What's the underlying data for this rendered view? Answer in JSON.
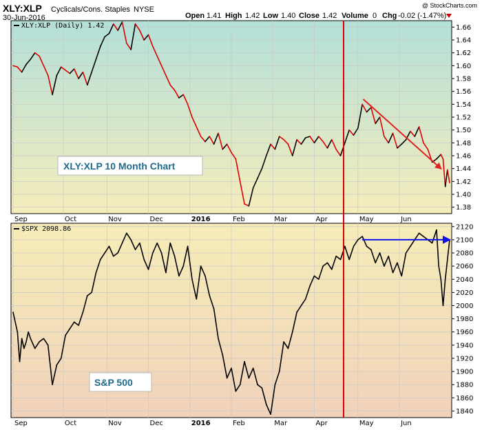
{
  "header": {
    "symbol": "XLY:XLP",
    "name": "Cyclicals/Cons. Staples",
    "exchange": "NYSE",
    "date": "30-Jun-2016",
    "open_label": "Open",
    "open": "1.41",
    "high_label": "High",
    "high": "1.42",
    "low_label": "Low",
    "low": "1.40",
    "close_label": "Close",
    "close": "1.42",
    "volume_label": "Volume",
    "volume": "0",
    "chg_label": "Chg",
    "chg": "-0.02 (-1.47%)",
    "watermark": "@ StockCharts.com"
  },
  "colors": {
    "ratio_up": "#000000",
    "ratio_down": "#dd0000",
    "trend_red": "#e02020",
    "trend_blue": "#1010ee",
    "vline": "#dd0000"
  },
  "chart_data": [
    {
      "type": "line",
      "legend": "XLY:XLP (Daily) 1.42",
      "annotation": "XLY:XLP 10 Month Chart",
      "ylim": [
        1.37,
        1.67
      ],
      "yticks": [
        "1.66",
        "1.64",
        "1.62",
        "1.60",
        "1.58",
        "1.56",
        "1.54",
        "1.52",
        "1.50",
        "1.48",
        "1.46",
        "1.44",
        "1.42",
        "1.40",
        "1.38"
      ],
      "months": [
        "Sep",
        "Oct",
        "Nov",
        "Dec",
        "2016",
        "Feb",
        "Mar",
        "Apr",
        "May",
        "Jun"
      ],
      "grid": true,
      "trendline": {
        "from": [
          0.802,
          1.548
        ],
        "to": [
          0.98,
          1.44
        ]
      },
      "series": [
        {
          "x": 0.0,
          "y": 1.6
        },
        {
          "x": 0.01,
          "y": 1.598
        },
        {
          "x": 0.02,
          "y": 1.59
        },
        {
          "x": 0.03,
          "y": 1.602
        },
        {
          "x": 0.04,
          "y": 1.61
        },
        {
          "x": 0.05,
          "y": 1.62
        },
        {
          "x": 0.06,
          "y": 1.615
        },
        {
          "x": 0.07,
          "y": 1.6
        },
        {
          "x": 0.08,
          "y": 1.585
        },
        {
          "x": 0.09,
          "y": 1.555
        },
        {
          "x": 0.1,
          "y": 1.585
        },
        {
          "x": 0.11,
          "y": 1.598
        },
        {
          "x": 0.12,
          "y": 1.593
        },
        {
          "x": 0.13,
          "y": 1.588
        },
        {
          "x": 0.14,
          "y": 1.595
        },
        {
          "x": 0.15,
          "y": 1.58
        },
        {
          "x": 0.16,
          "y": 1.59
        },
        {
          "x": 0.17,
          "y": 1.57
        },
        {
          "x": 0.18,
          "y": 1.59
        },
        {
          "x": 0.19,
          "y": 1.61
        },
        {
          "x": 0.2,
          "y": 1.63
        },
        {
          "x": 0.21,
          "y": 1.645
        },
        {
          "x": 0.22,
          "y": 1.65
        },
        {
          "x": 0.23,
          "y": 1.665
        },
        {
          "x": 0.24,
          "y": 1.655
        },
        {
          "x": 0.25,
          "y": 1.668
        },
        {
          "x": 0.26,
          "y": 1.635
        },
        {
          "x": 0.27,
          "y": 1.625
        },
        {
          "x": 0.28,
          "y": 1.665
        },
        {
          "x": 0.29,
          "y": 1.655
        },
        {
          "x": 0.3,
          "y": 1.64
        },
        {
          "x": 0.31,
          "y": 1.648
        },
        {
          "x": 0.32,
          "y": 1.63
        },
        {
          "x": 0.33,
          "y": 1.615
        },
        {
          "x": 0.34,
          "y": 1.6
        },
        {
          "x": 0.35,
          "y": 1.585
        },
        {
          "x": 0.36,
          "y": 1.57
        },
        {
          "x": 0.37,
          "y": 1.562
        },
        {
          "x": 0.38,
          "y": 1.55
        },
        {
          "x": 0.39,
          "y": 1.555
        },
        {
          "x": 0.4,
          "y": 1.54
        },
        {
          "x": 0.41,
          "y": 1.52
        },
        {
          "x": 0.42,
          "y": 1.505
        },
        {
          "x": 0.43,
          "y": 1.49
        },
        {
          "x": 0.44,
          "y": 1.482
        },
        {
          "x": 0.45,
          "y": 1.49
        },
        {
          "x": 0.46,
          "y": 1.478
        },
        {
          "x": 0.47,
          "y": 1.495
        },
        {
          "x": 0.48,
          "y": 1.47
        },
        {
          "x": 0.49,
          "y": 1.478
        },
        {
          "x": 0.5,
          "y": 1.465
        },
        {
          "x": 0.51,
          "y": 1.455
        },
        {
          "x": 0.52,
          "y": 1.42
        },
        {
          "x": 0.53,
          "y": 1.385
        },
        {
          "x": 0.54,
          "y": 1.382
        },
        {
          "x": 0.55,
          "y": 1.41
        },
        {
          "x": 0.56,
          "y": 1.425
        },
        {
          "x": 0.57,
          "y": 1.44
        },
        {
          "x": 0.58,
          "y": 1.46
        },
        {
          "x": 0.59,
          "y": 1.478
        },
        {
          "x": 0.6,
          "y": 1.47
        },
        {
          "x": 0.61,
          "y": 1.49
        },
        {
          "x": 0.62,
          "y": 1.485
        },
        {
          "x": 0.63,
          "y": 1.478
        },
        {
          "x": 0.64,
          "y": 1.46
        },
        {
          "x": 0.65,
          "y": 1.485
        },
        {
          "x": 0.66,
          "y": 1.478
        },
        {
          "x": 0.67,
          "y": 1.488
        },
        {
          "x": 0.68,
          "y": 1.49
        },
        {
          "x": 0.69,
          "y": 1.48
        },
        {
          "x": 0.7,
          "y": 1.49
        },
        {
          "x": 0.71,
          "y": 1.482
        },
        {
          "x": 0.72,
          "y": 1.472
        },
        {
          "x": 0.73,
          "y": 1.485
        },
        {
          "x": 0.74,
          "y": 1.47
        },
        {
          "x": 0.75,
          "y": 1.46
        },
        {
          "x": 0.76,
          "y": 1.48
        },
        {
          "x": 0.77,
          "y": 1.5
        },
        {
          "x": 0.78,
          "y": 1.492
        },
        {
          "x": 0.79,
          "y": 1.503
        },
        {
          "x": 0.8,
          "y": 1.54
        },
        {
          "x": 0.81,
          "y": 1.528
        },
        {
          "x": 0.82,
          "y": 1.535
        },
        {
          "x": 0.83,
          "y": 1.51
        },
        {
          "x": 0.84,
          "y": 1.52
        },
        {
          "x": 0.85,
          "y": 1.49
        },
        {
          "x": 0.86,
          "y": 1.48
        },
        {
          "x": 0.87,
          "y": 1.495
        },
        {
          "x": 0.88,
          "y": 1.472
        },
        {
          "x": 0.89,
          "y": 1.478
        },
        {
          "x": 0.9,
          "y": 1.485
        },
        {
          "x": 0.91,
          "y": 1.498
        },
        {
          "x": 0.92,
          "y": 1.49
        },
        {
          "x": 0.93,
          "y": 1.505
        },
        {
          "x": 0.94,
          "y": 1.48
        },
        {
          "x": 0.95,
          "y": 1.47
        },
        {
          "x": 0.96,
          "y": 1.45
        },
        {
          "x": 0.97,
          "y": 1.455
        },
        {
          "x": 0.98,
          "y": 1.462
        },
        {
          "x": 0.985,
          "y": 1.455
        },
        {
          "x": 0.99,
          "y": 1.412
        },
        {
          "x": 0.995,
          "y": 1.438
        },
        {
          "x": 1.0,
          "y": 1.418
        }
      ]
    },
    {
      "type": "line",
      "legend": "$SPX 2098.86",
      "annotation": "S&P 500",
      "ylim": [
        1830,
        2125
      ],
      "yticks": [
        "2120",
        "2100",
        "2080",
        "2060",
        "2040",
        "2020",
        "2000",
        "1980",
        "1960",
        "1940",
        "1920",
        "1900",
        "1880",
        "1860",
        "1840"
      ],
      "months": [
        "Sep",
        "Oct",
        "Nov",
        "Dec",
        "2016",
        "Feb",
        "Mar",
        "Apr",
        "May",
        "Jun"
      ],
      "grid": true,
      "trendline": {
        "from": [
          0.8,
          2100
        ],
        "to": [
          1.0,
          2100
        ]
      },
      "series": [
        {
          "x": 0.0,
          "y": 1990
        },
        {
          "x": 0.01,
          "y": 1960
        },
        {
          "x": 0.015,
          "y": 1915
        },
        {
          "x": 0.02,
          "y": 1950
        },
        {
          "x": 0.025,
          "y": 1935
        },
        {
          "x": 0.03,
          "y": 1945
        },
        {
          "x": 0.035,
          "y": 1960
        },
        {
          "x": 0.04,
          "y": 1950
        },
        {
          "x": 0.05,
          "y": 1935
        },
        {
          "x": 0.06,
          "y": 1945
        },
        {
          "x": 0.07,
          "y": 1950
        },
        {
          "x": 0.08,
          "y": 1940
        },
        {
          "x": 0.09,
          "y": 1880
        },
        {
          "x": 0.1,
          "y": 1910
        },
        {
          "x": 0.11,
          "y": 1920
        },
        {
          "x": 0.12,
          "y": 1955
        },
        {
          "x": 0.13,
          "y": 1965
        },
        {
          "x": 0.14,
          "y": 1975
        },
        {
          "x": 0.15,
          "y": 1970
        },
        {
          "x": 0.16,
          "y": 1990
        },
        {
          "x": 0.17,
          "y": 2015
        },
        {
          "x": 0.18,
          "y": 2020
        },
        {
          "x": 0.19,
          "y": 2050
        },
        {
          "x": 0.2,
          "y": 2070
        },
        {
          "x": 0.21,
          "y": 2080
        },
        {
          "x": 0.22,
          "y": 2090
        },
        {
          "x": 0.23,
          "y": 2075
        },
        {
          "x": 0.24,
          "y": 2080
        },
        {
          "x": 0.25,
          "y": 2095
        },
        {
          "x": 0.26,
          "y": 2110
        },
        {
          "x": 0.27,
          "y": 2100
        },
        {
          "x": 0.28,
          "y": 2085
        },
        {
          "x": 0.29,
          "y": 2095
        },
        {
          "x": 0.3,
          "y": 2070
        },
        {
          "x": 0.31,
          "y": 2055
        },
        {
          "x": 0.32,
          "y": 2080
        },
        {
          "x": 0.33,
          "y": 2095
        },
        {
          "x": 0.34,
          "y": 2080
        },
        {
          "x": 0.35,
          "y": 2050
        },
        {
          "x": 0.36,
          "y": 2095
        },
        {
          "x": 0.37,
          "y": 2075
        },
        {
          "x": 0.38,
          "y": 2045
        },
        {
          "x": 0.39,
          "y": 2060
        },
        {
          "x": 0.4,
          "y": 2090
        },
        {
          "x": 0.41,
          "y": 2040
        },
        {
          "x": 0.42,
          "y": 2010
        },
        {
          "x": 0.43,
          "y": 2060
        },
        {
          "x": 0.44,
          "y": 2045
        },
        {
          "x": 0.45,
          "y": 2015
        },
        {
          "x": 0.46,
          "y": 1995
        },
        {
          "x": 0.47,
          "y": 1950
        },
        {
          "x": 0.48,
          "y": 1925
        },
        {
          "x": 0.49,
          "y": 1890
        },
        {
          "x": 0.5,
          "y": 1905
        },
        {
          "x": 0.51,
          "y": 1870
        },
        {
          "x": 0.52,
          "y": 1880
        },
        {
          "x": 0.53,
          "y": 1915
        },
        {
          "x": 0.54,
          "y": 1890
        },
        {
          "x": 0.55,
          "y": 1905
        },
        {
          "x": 0.56,
          "y": 1880
        },
        {
          "x": 0.57,
          "y": 1875
        },
        {
          "x": 0.58,
          "y": 1850
        },
        {
          "x": 0.59,
          "y": 1835
        },
        {
          "x": 0.6,
          "y": 1880
        },
        {
          "x": 0.61,
          "y": 1900
        },
        {
          "x": 0.62,
          "y": 1945
        },
        {
          "x": 0.63,
          "y": 1935
        },
        {
          "x": 0.64,
          "y": 1960
        },
        {
          "x": 0.65,
          "y": 1990
        },
        {
          "x": 0.66,
          "y": 2000
        },
        {
          "x": 0.67,
          "y": 2010
        },
        {
          "x": 0.68,
          "y": 2030
        },
        {
          "x": 0.69,
          "y": 2045
        },
        {
          "x": 0.7,
          "y": 2040
        },
        {
          "x": 0.71,
          "y": 2060
        },
        {
          "x": 0.72,
          "y": 2065
        },
        {
          "x": 0.73,
          "y": 2055
        },
        {
          "x": 0.74,
          "y": 2075
        },
        {
          "x": 0.75,
          "y": 2070
        },
        {
          "x": 0.76,
          "y": 2090
        },
        {
          "x": 0.77,
          "y": 2070
        },
        {
          "x": 0.78,
          "y": 2090
        },
        {
          "x": 0.79,
          "y": 2100
        },
        {
          "x": 0.8,
          "y": 2105
        },
        {
          "x": 0.81,
          "y": 2090
        },
        {
          "x": 0.82,
          "y": 2085
        },
        {
          "x": 0.83,
          "y": 2065
        },
        {
          "x": 0.84,
          "y": 2080
        },
        {
          "x": 0.85,
          "y": 2060
        },
        {
          "x": 0.86,
          "y": 2075
        },
        {
          "x": 0.87,
          "y": 2050
        },
        {
          "x": 0.88,
          "y": 2065
        },
        {
          "x": 0.89,
          "y": 2045
        },
        {
          "x": 0.9,
          "y": 2080
        },
        {
          "x": 0.91,
          "y": 2090
        },
        {
          "x": 0.92,
          "y": 2100
        },
        {
          "x": 0.93,
          "y": 2110
        },
        {
          "x": 0.94,
          "y": 2105
        },
        {
          "x": 0.95,
          "y": 2100
        },
        {
          "x": 0.96,
          "y": 2095
        },
        {
          "x": 0.97,
          "y": 2115
        },
        {
          "x": 0.975,
          "y": 2060
        },
        {
          "x": 0.98,
          "y": 2040
        },
        {
          "x": 0.985,
          "y": 2000
        },
        {
          "x": 0.99,
          "y": 2040
        },
        {
          "x": 0.995,
          "y": 2070
        },
        {
          "x": 1.0,
          "y": 2100
        }
      ]
    }
  ]
}
